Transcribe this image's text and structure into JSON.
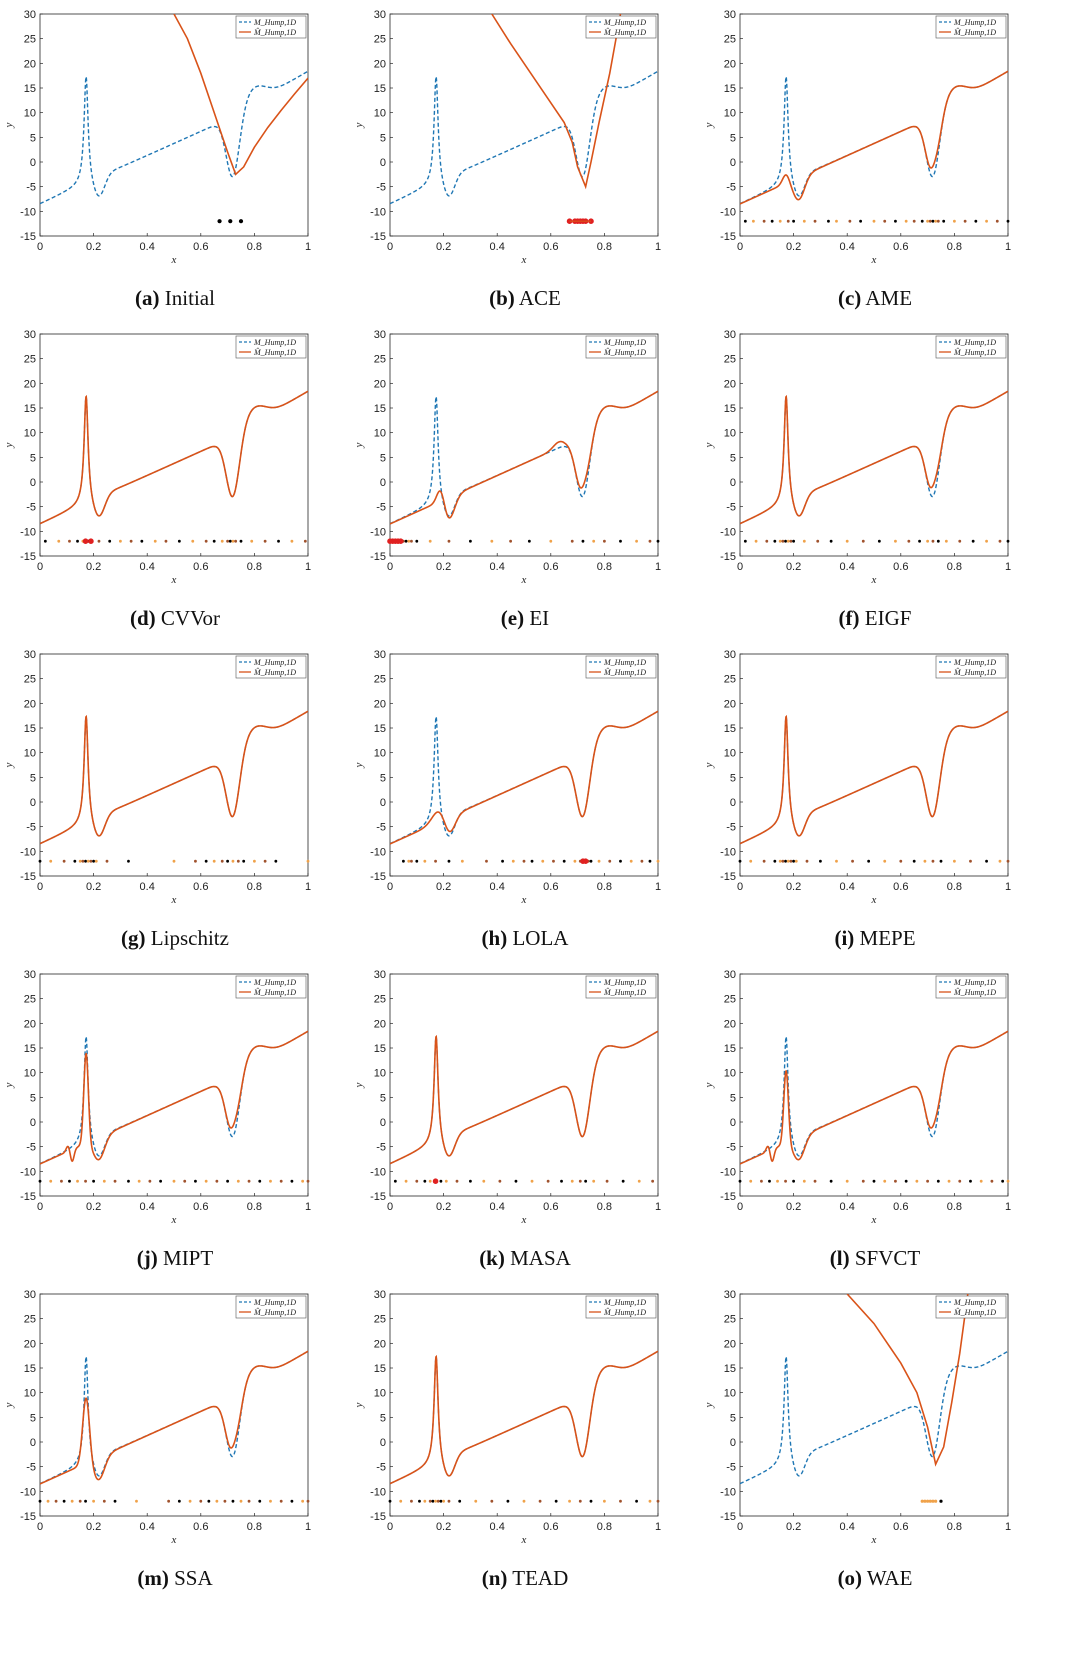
{
  "colors": {
    "true_model": "#1f77b4",
    "surrogate": "#d95319",
    "initial_point": "#000000",
    "added_point_light": "#f0a24a",
    "added_point_mid": "#a0522d",
    "highlight_point": "#e02020"
  },
  "chart_data": [
    {
      "id": "a",
      "letter": "(a)",
      "title": "Initial",
      "type": "line",
      "xlabel": "x",
      "ylabel": "y",
      "xlim": [
        0,
        1
      ],
      "ylim": [
        -15,
        30
      ],
      "xticks": [
        "0",
        "0.2",
        "0.4",
        "0.6",
        "0.8",
        "1"
      ],
      "yticks": [
        "-15",
        "-10",
        "-5",
        "0",
        "5",
        "10",
        "15",
        "20",
        "25",
        "30"
      ],
      "legend": {
        "position": "top-right",
        "entries": [
          "M_Hump,1D",
          "M̂_Hump,1D"
        ]
      },
      "surrogate": [
        [
          0.5,
          30
        ],
        [
          0.55,
          25
        ],
        [
          0.6,
          18
        ],
        [
          0.65,
          10
        ],
        [
          0.7,
          2
        ],
        [
          0.73,
          -2.5
        ],
        [
          0.76,
          -1
        ],
        [
          0.8,
          3
        ],
        [
          0.85,
          7
        ],
        [
          0.9,
          10.5
        ],
        [
          0.95,
          13.8
        ],
        [
          1,
          17
        ]
      ],
      "points": {
        "y": -12,
        "x": [
          0.67,
          0.71,
          0.75
        ],
        "style": "initial"
      }
    },
    {
      "id": "b",
      "letter": "(b)",
      "title": "ACE",
      "type": "line",
      "xlabel": "x",
      "ylabel": "y",
      "xlim": [
        0,
        1
      ],
      "ylim": [
        -15,
        30
      ],
      "xticks": [
        "0",
        "0.2",
        "0.4",
        "0.6",
        "0.8",
        "1"
      ],
      "yticks": [
        "-15",
        "-10",
        "-5",
        "0",
        "5",
        "10",
        "15",
        "20",
        "25",
        "30"
      ],
      "legend": {
        "position": "top-right",
        "entries": [
          "M_Hump,1D",
          "M̂_Hump,1D"
        ]
      },
      "surrogate": [
        [
          0.38,
          30
        ],
        [
          0.45,
          24
        ],
        [
          0.55,
          16
        ],
        [
          0.65,
          8
        ],
        [
          0.68,
          4
        ],
        [
          0.7,
          -1
        ],
        [
          0.73,
          -5
        ],
        [
          0.75,
          0
        ],
        [
          0.78,
          8
        ],
        [
          0.82,
          18
        ],
        [
          0.86,
          30
        ]
      ],
      "points": {
        "y": -12,
        "x": [
          0.67,
          0.69,
          0.7,
          0.71,
          0.72,
          0.73,
          0.75
        ],
        "style": "red"
      }
    },
    {
      "id": "c",
      "letter": "(c)",
      "title": "AME",
      "type": "line",
      "xlabel": "x",
      "ylabel": "y",
      "xlim": [
        0,
        1
      ],
      "ylim": [
        -15,
        30
      ],
      "xticks": [
        "0",
        "0.2",
        "0.4",
        "0.6",
        "0.8",
        "1"
      ],
      "yticks": [
        "-15",
        "-10",
        "-5",
        "0",
        "5",
        "10",
        "15",
        "20",
        "25",
        "30"
      ],
      "legend": {
        "position": "top-right",
        "entries": [
          "M_Hump,1D",
          "M̂_Hump,1D"
        ]
      },
      "surrogate_variant": "smoothed_peak",
      "peak_height": 2,
      "points": {
        "y": -12,
        "x": [
          0.02,
          0.05,
          0.09,
          0.12,
          0.15,
          0.18,
          0.2,
          0.24,
          0.28,
          0.33,
          0.36,
          0.41,
          0.45,
          0.5,
          0.54,
          0.58,
          0.62,
          0.65,
          0.68,
          0.7,
          0.71,
          0.72,
          0.73,
          0.74,
          0.76,
          0.8,
          0.84,
          0.88,
          0.92,
          0.96,
          1.0
        ],
        "style": "mixed"
      }
    },
    {
      "id": "d",
      "letter": "(d)",
      "title": "CVVor",
      "type": "line",
      "xlabel": "x",
      "ylabel": "y",
      "xlim": [
        0,
        1
      ],
      "ylim": [
        -15,
        30
      ],
      "xticks": [
        "0",
        "0.2",
        "0.4",
        "0.6",
        "0.8",
        "1"
      ],
      "yticks": [
        "-15",
        "-10",
        "-5",
        "0",
        "5",
        "10",
        "15",
        "20",
        "25",
        "30"
      ],
      "legend": {
        "position": "top-right",
        "entries": [
          "M_Hump,1D",
          "M̂_Hump,1D"
        ]
      },
      "surrogate_variant": "near_exact",
      "points": {
        "y": -12,
        "x": [
          0.02,
          0.07,
          0.11,
          0.14,
          0.16,
          0.17,
          0.18,
          0.19,
          0.22,
          0.26,
          0.3,
          0.34,
          0.38,
          0.43,
          0.47,
          0.52,
          0.57,
          0.62,
          0.65,
          0.68,
          0.7,
          0.71,
          0.72,
          0.73,
          0.75,
          0.79,
          0.84,
          0.89,
          0.94,
          0.99
        ],
        "style": "mixed_red",
        "red_x": [
          0.17,
          0.19
        ]
      }
    },
    {
      "id": "e",
      "letter": "(e)",
      "title": "EI",
      "type": "line",
      "xlabel": "x",
      "ylabel": "y",
      "xlim": [
        0,
        1
      ],
      "ylim": [
        -15,
        30
      ],
      "xticks": [
        "0",
        "0.2",
        "0.4",
        "0.6",
        "0.8",
        "1"
      ],
      "yticks": [
        "-15",
        "-10",
        "-5",
        "0",
        "5",
        "10",
        "15",
        "20",
        "25",
        "30"
      ],
      "legend": {
        "position": "top-right",
        "entries": [
          "M_Hump,1D",
          "M̂_Hump,1D"
        ]
      },
      "surrogate_variant": "ei",
      "points": {
        "y": -12,
        "x": [
          0.0,
          0.01,
          0.02,
          0.03,
          0.04,
          0.05,
          0.06,
          0.07,
          0.08,
          0.1,
          0.15,
          0.22,
          0.3,
          0.38,
          0.45,
          0.52,
          0.6,
          0.68,
          0.72,
          0.76,
          0.8,
          0.86,
          0.92,
          0.97,
          1.0
        ],
        "style": "mixed_red",
        "red_x": [
          0.0,
          0.01,
          0.02,
          0.03,
          0.04
        ]
      }
    },
    {
      "id": "f",
      "letter": "(f)",
      "title": "EIGF",
      "type": "line",
      "xlabel": "x",
      "ylabel": "y",
      "xlim": [
        0,
        1
      ],
      "ylim": [
        -15,
        30
      ],
      "xticks": [
        "0",
        "0.2",
        "0.4",
        "0.6",
        "0.8",
        "1"
      ],
      "yticks": [
        "-15",
        "-10",
        "-5",
        "0",
        "5",
        "10",
        "15",
        "20",
        "25",
        "30"
      ],
      "legend": {
        "position": "top-right",
        "entries": [
          "M_Hump,1D",
          "M̂_Hump,1D"
        ]
      },
      "surrogate_variant": "shallow_valley",
      "points": {
        "y": -12,
        "x": [
          0.02,
          0.06,
          0.1,
          0.13,
          0.15,
          0.16,
          0.17,
          0.18,
          0.19,
          0.2,
          0.24,
          0.29,
          0.34,
          0.4,
          0.46,
          0.52,
          0.58,
          0.63,
          0.67,
          0.7,
          0.72,
          0.74,
          0.77,
          0.82,
          0.87,
          0.92,
          0.97,
          1.0
        ],
        "style": "mixed"
      }
    },
    {
      "id": "g",
      "letter": "(g)",
      "title": "Lipschitz",
      "type": "line",
      "xlabel": "x",
      "ylabel": "y",
      "xlim": [
        0,
        1
      ],
      "ylim": [
        -15,
        30
      ],
      "xticks": [
        "0",
        "0.2",
        "0.4",
        "0.6",
        "0.8",
        "1"
      ],
      "yticks": [
        "-15",
        "-10",
        "-5",
        "0",
        "5",
        "10",
        "15",
        "20",
        "25",
        "30"
      ],
      "legend": {
        "position": "top-right",
        "entries": [
          "M_Hump,1D",
          "M̂_Hump,1D"
        ]
      },
      "surrogate_variant": "near_exact",
      "points": {
        "y": -12,
        "x": [
          0.0,
          0.04,
          0.09,
          0.13,
          0.15,
          0.16,
          0.17,
          0.18,
          0.19,
          0.2,
          0.21,
          0.25,
          0.33,
          0.5,
          0.58,
          0.62,
          0.65,
          0.68,
          0.7,
          0.72,
          0.74,
          0.76,
          0.8,
          0.84,
          0.88,
          1.0
        ],
        "style": "mixed"
      }
    },
    {
      "id": "h",
      "letter": "(h)",
      "title": "LOLA",
      "type": "line",
      "xlabel": "x",
      "ylabel": "y",
      "xlim": [
        0,
        1
      ],
      "ylim": [
        -15,
        30
      ],
      "xticks": [
        "0",
        "0.2",
        "0.4",
        "0.6",
        "0.8",
        "1"
      ],
      "yticks": [
        "-15",
        "-10",
        "-5",
        "0",
        "5",
        "10",
        "15",
        "20",
        "25",
        "30"
      ],
      "legend": {
        "position": "top-right",
        "entries": [
          "M_Hump,1D",
          "M̂_Hump,1D"
        ]
      },
      "surrogate_variant": "no_peak",
      "points": {
        "y": -12,
        "x": [
          0.05,
          0.07,
          0.08,
          0.1,
          0.13,
          0.17,
          0.22,
          0.27,
          0.36,
          0.42,
          0.46,
          0.5,
          0.53,
          0.57,
          0.61,
          0.65,
          0.69,
          0.71,
          0.72,
          0.73,
          0.74,
          0.75,
          0.78,
          0.82,
          0.86,
          0.9,
          0.94,
          0.97,
          1.0
        ],
        "style": "mixed_red",
        "red_x": [
          0.72,
          0.73
        ]
      }
    },
    {
      "id": "i",
      "letter": "(i)",
      "title": "MEPE",
      "type": "line",
      "xlabel": "x",
      "ylabel": "y",
      "xlim": [
        0,
        1
      ],
      "ylim": [
        -15,
        30
      ],
      "xticks": [
        "0",
        "0.2",
        "0.4",
        "0.6",
        "0.8",
        "1"
      ],
      "yticks": [
        "-15",
        "-10",
        "-5",
        "0",
        "5",
        "10",
        "15",
        "20",
        "25",
        "30"
      ],
      "legend": {
        "position": "top-right",
        "entries": [
          "M_Hump,1D",
          "M̂_Hump,1D"
        ]
      },
      "surrogate_variant": "near_exact",
      "points": {
        "y": -12,
        "x": [
          0.0,
          0.04,
          0.09,
          0.13,
          0.15,
          0.16,
          0.17,
          0.18,
          0.19,
          0.2,
          0.21,
          0.25,
          0.3,
          0.36,
          0.42,
          0.48,
          0.54,
          0.6,
          0.65,
          0.69,
          0.72,
          0.75,
          0.8,
          0.86,
          0.92,
          0.97,
          1.0
        ],
        "style": "mixed"
      }
    },
    {
      "id": "j",
      "letter": "(j)",
      "title": "MIPT",
      "type": "line",
      "xlabel": "x",
      "ylabel": "y",
      "xlim": [
        0,
        1
      ],
      "ylim": [
        -15,
        30
      ],
      "xticks": [
        "0",
        "0.2",
        "0.4",
        "0.6",
        "0.8",
        "1"
      ],
      "yticks": [
        "-15",
        "-10",
        "-5",
        "0",
        "5",
        "10",
        "15",
        "20",
        "25",
        "30"
      ],
      "legend": {
        "position": "top-right",
        "entries": [
          "M_Hump,1D",
          "M̂_Hump,1D"
        ]
      },
      "surrogate_variant": "wiggly",
      "peak_height": 18.5,
      "points": {
        "y": -12,
        "x": [
          0.0,
          0.04,
          0.08,
          0.11,
          0.14,
          0.17,
          0.2,
          0.24,
          0.28,
          0.33,
          0.37,
          0.41,
          0.45,
          0.5,
          0.54,
          0.58,
          0.62,
          0.66,
          0.7,
          0.74,
          0.78,
          0.82,
          0.86,
          0.9,
          0.94,
          0.98,
          1.0
        ],
        "style": "mixed"
      }
    },
    {
      "id": "k",
      "letter": "(k)",
      "title": "MASA",
      "type": "line",
      "xlabel": "x",
      "ylabel": "y",
      "xlim": [
        0,
        1
      ],
      "ylim": [
        -15,
        30
      ],
      "xticks": [
        "0",
        "0.2",
        "0.4",
        "0.6",
        "0.8",
        "1"
      ],
      "yticks": [
        "-15",
        "-10",
        "-5",
        "0",
        "5",
        "10",
        "15",
        "20",
        "25",
        "30"
      ],
      "legend": {
        "position": "top-right",
        "entries": [
          "M_Hump,1D",
          "M̂_Hump,1D"
        ]
      },
      "surrogate_variant": "near_exact",
      "points": {
        "y": -12,
        "x": [
          0.02,
          0.06,
          0.1,
          0.13,
          0.15,
          0.17,
          0.19,
          0.21,
          0.25,
          0.3,
          0.35,
          0.41,
          0.47,
          0.53,
          0.59,
          0.64,
          0.68,
          0.71,
          0.73,
          0.76,
          0.81,
          0.87,
          0.93,
          0.98
        ],
        "style": "mixed_red",
        "red_x": [
          0.17
        ]
      }
    },
    {
      "id": "l",
      "letter": "(l)",
      "title": "SFVCT",
      "type": "line",
      "xlabel": "x",
      "ylabel": "y",
      "xlim": [
        0,
        1
      ],
      "ylim": [
        -15,
        30
      ],
      "xticks": [
        "0",
        "0.2",
        "0.4",
        "0.6",
        "0.8",
        "1"
      ],
      "yticks": [
        "-15",
        "-10",
        "-5",
        "0",
        "5",
        "10",
        "15",
        "20",
        "25",
        "30"
      ],
      "legend": {
        "position": "top-right",
        "entries": [
          "M_Hump,1D",
          "M̂_Hump,1D"
        ]
      },
      "surrogate_variant": "wiggly",
      "peak_height": 15,
      "points": {
        "y": -12,
        "x": [
          0.0,
          0.04,
          0.08,
          0.11,
          0.14,
          0.17,
          0.2,
          0.24,
          0.28,
          0.34,
          0.4,
          0.46,
          0.5,
          0.54,
          0.58,
          0.62,
          0.66,
          0.7,
          0.74,
          0.78,
          0.82,
          0.86,
          0.9,
          0.94,
          0.98,
          1.0
        ],
        "style": "mixed"
      }
    },
    {
      "id": "m",
      "letter": "(m)",
      "title": "SSA",
      "type": "line",
      "xlabel": "x",
      "ylabel": "y",
      "xlim": [
        0,
        1
      ],
      "ylim": [
        -15,
        30
      ],
      "xticks": [
        "0",
        "0.2",
        "0.4",
        "0.6",
        "0.8",
        "1"
      ],
      "yticks": [
        "-15",
        "-10",
        "-5",
        "0",
        "5",
        "10",
        "15",
        "20",
        "25",
        "30"
      ],
      "legend": {
        "position": "top-right",
        "entries": [
          "M_Hump,1D",
          "M̂_Hump,1D"
        ]
      },
      "surrogate_variant": "smoothed_peak",
      "peak_height": 13.5,
      "points": {
        "y": -12,
        "x": [
          0.0,
          0.03,
          0.06,
          0.09,
          0.12,
          0.15,
          0.17,
          0.2,
          0.24,
          0.28,
          0.36,
          0.48,
          0.52,
          0.56,
          0.6,
          0.63,
          0.66,
          0.69,
          0.72,
          0.75,
          0.78,
          0.82,
          0.86,
          0.9,
          0.94,
          0.98,
          1.0
        ],
        "style": "mixed"
      }
    },
    {
      "id": "n",
      "letter": "(n)",
      "title": "TEAD",
      "type": "line",
      "xlabel": "x",
      "ylabel": "y",
      "xlim": [
        0,
        1
      ],
      "ylim": [
        -15,
        30
      ],
      "xticks": [
        "0",
        "0.2",
        "0.4",
        "0.6",
        "0.8",
        "1"
      ],
      "yticks": [
        "-15",
        "-10",
        "-5",
        "0",
        "5",
        "10",
        "15",
        "20",
        "25",
        "30"
      ],
      "legend": {
        "position": "top-right",
        "entries": [
          "M_Hump,1D",
          "M̂_Hump,1D"
        ]
      },
      "surrogate_variant": "near_exact",
      "points": {
        "y": -12,
        "x": [
          0.0,
          0.04,
          0.08,
          0.11,
          0.13,
          0.15,
          0.16,
          0.17,
          0.18,
          0.19,
          0.2,
          0.22,
          0.26,
          0.32,
          0.38,
          0.44,
          0.5,
          0.56,
          0.62,
          0.67,
          0.71,
          0.75,
          0.8,
          0.86,
          0.92,
          0.97,
          1.0
        ],
        "style": "mixed"
      }
    },
    {
      "id": "o",
      "letter": "(o)",
      "title": "WAE",
      "type": "line",
      "xlabel": "x",
      "ylabel": "y",
      "xlim": [
        0,
        1
      ],
      "ylim": [
        -15,
        30
      ],
      "xticks": [
        "0",
        "0.2",
        "0.4",
        "0.6",
        "0.8",
        "1"
      ],
      "yticks": [
        "-15",
        "-10",
        "-5",
        "0",
        "5",
        "10",
        "15",
        "20",
        "25",
        "30"
      ],
      "legend": {
        "position": "top-right",
        "entries": [
          "M_Hump,1D",
          "M̂_Hump,1D"
        ]
      },
      "surrogate": [
        [
          0.4,
          30
        ],
        [
          0.5,
          24
        ],
        [
          0.6,
          16
        ],
        [
          0.66,
          10
        ],
        [
          0.7,
          3
        ],
        [
          0.73,
          -4.5
        ],
        [
          0.76,
          -1
        ],
        [
          0.79,
          8
        ],
        [
          0.82,
          18
        ],
        [
          0.85,
          30
        ]
      ],
      "points": {
        "y": -12,
        "x": [
          0.68,
          0.69,
          0.7,
          0.71,
          0.72,
          0.73,
          0.75
        ],
        "style": "cluster"
      }
    }
  ]
}
